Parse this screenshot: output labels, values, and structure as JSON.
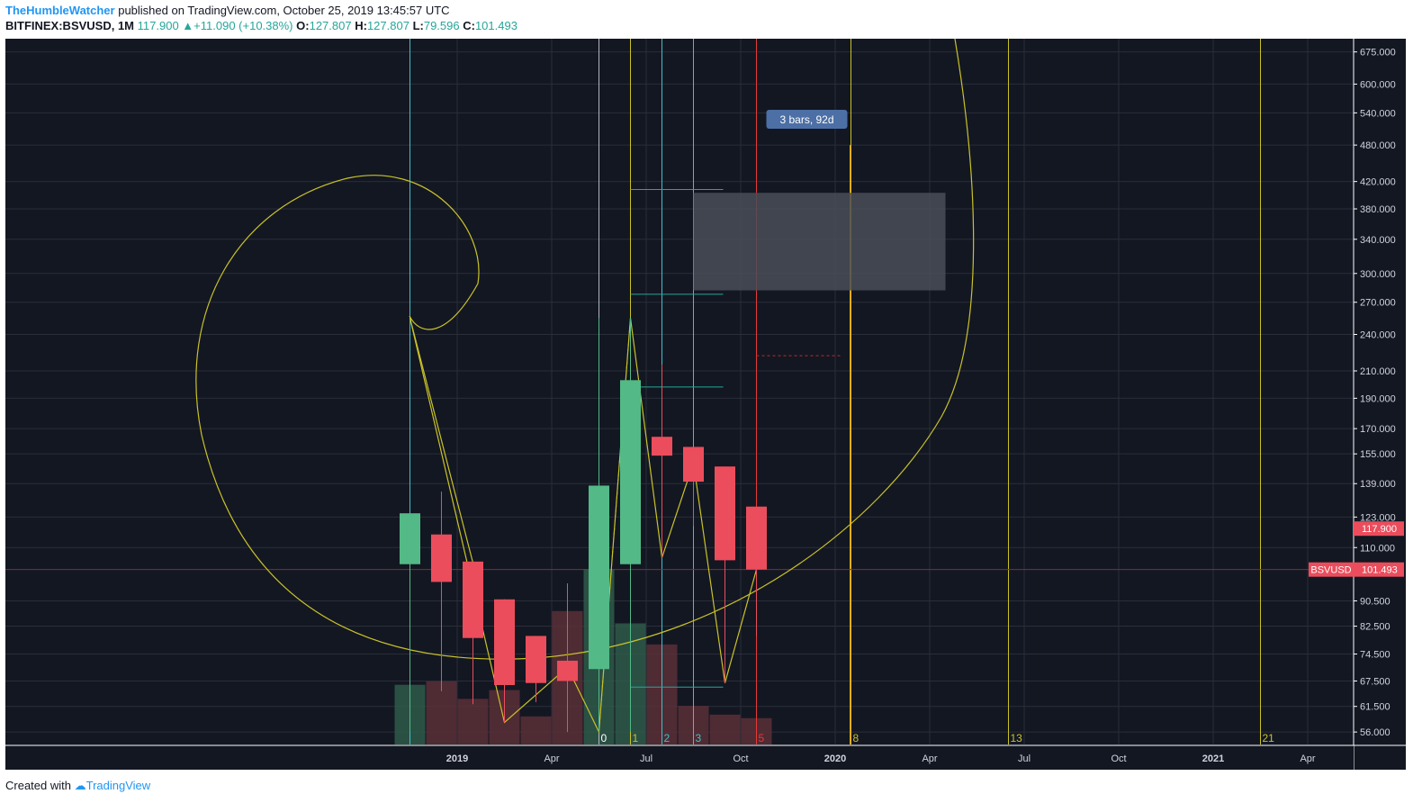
{
  "header": {
    "author": "TheHumbleWatcher",
    "published_text": "published on TradingView.com, October 25, 2019 13:45:57 UTC",
    "symbol": "BITFINEX:BSVUSD, 1M",
    "last": "117.900",
    "change": "+11.090 (+10.38%)",
    "open_label": "O:",
    "open": "127.807",
    "high_label": "H:",
    "high": "127.807",
    "low_label": "L:",
    "low": "79.596",
    "close_label": "C:",
    "close": "101.493"
  },
  "footer": {
    "created_with": "Created with",
    "brand": "TradingView"
  },
  "colors": {
    "background": "#131722",
    "up": "#53b987",
    "down": "#eb4d5c",
    "fib": "#c9c22a",
    "cyan": "#3fc1c9",
    "red_line": "#e53935",
    "orange_line": "#ff9800",
    "measure": "#4c6fa5"
  },
  "chart_data": {
    "type": "candlestick",
    "symbol": "BSVUSD",
    "interval": "1M",
    "x_ticks": [
      "2019",
      "Apr",
      "Jul",
      "Oct",
      "2020",
      "Apr",
      "Jul",
      "Oct",
      "2021",
      "Apr"
    ],
    "y_ticks": [
      "675.000",
      "600.000",
      "540.000",
      "480.000",
      "420.000",
      "380.000",
      "340.000",
      "300.000",
      "270.000",
      "240.000",
      "210.000",
      "190.000",
      "170.000",
      "155.000",
      "139.000",
      "123.000",
      "110.000",
      "90.500",
      "82.500",
      "74.500",
      "67.500",
      "61.500",
      "56.000"
    ],
    "y_scale": "log",
    "ylim": [
      53.5,
      690
    ],
    "candles": [
      {
        "date": "2018-11",
        "open": 103.5,
        "high": 124.7,
        "low": 56,
        "close": 124.7
      },
      {
        "date": "2018-12",
        "open": 115.4,
        "high": 135,
        "low": 65,
        "close": 97
      },
      {
        "date": "2019-01",
        "open": 104.5,
        "high": 104.5,
        "low": 62,
        "close": 79
      },
      {
        "date": "2019-02",
        "open": 91,
        "high": 91,
        "low": 58,
        "close": 66.5
      },
      {
        "date": "2019-03",
        "open": 79.6,
        "high": 79.6,
        "low": 62.5,
        "close": 67
      },
      {
        "date": "2019-04",
        "open": 72.7,
        "high": 96.5,
        "low": 56,
        "close": 67.5
      },
      {
        "date": "2019-05",
        "open": 70.5,
        "high": 255,
        "low": 56,
        "close": 138
      },
      {
        "date": "2019-06",
        "open": 103.5,
        "high": 255,
        "low": 56,
        "close": 203
      },
      {
        "date": "2019-07",
        "open": 165,
        "high": 215,
        "low": 106,
        "close": 154
      },
      {
        "date": "2019-08",
        "open": 159,
        "high": 159,
        "low": 119,
        "close": 140
      },
      {
        "date": "2019-09",
        "open": 148,
        "high": 148,
        "low": 67,
        "close": 105
      },
      {
        "date": "2019-10",
        "open": 127.8,
        "high": 127.8,
        "low": 79.6,
        "close": 101.5
      }
    ],
    "volume_rel": [
      0.34,
      0.36,
      0.26,
      0.31,
      0.16,
      0.76,
      1.0,
      0.69,
      0.57,
      0.22,
      0.17,
      0.15
    ],
    "last_price_label": "117.900",
    "symbol_price_label": "101.493",
    "symbol_tag": "BSVUSD",
    "fib_time_labels": [
      "0",
      "1",
      "2",
      "3",
      "5",
      "8",
      "13",
      "21"
    ],
    "measure_label": "3 bars, 92d"
  }
}
